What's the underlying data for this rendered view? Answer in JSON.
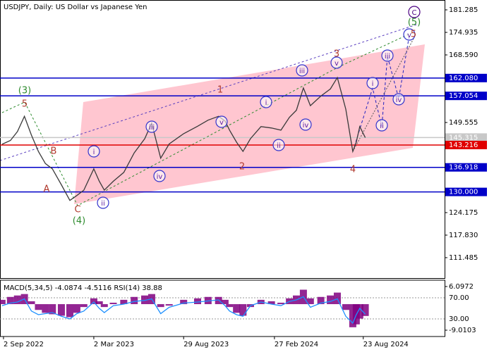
{
  "chart_data": [
    {
      "type": "line",
      "title": "USDJPY, Daily:  US Dollar vs Japanese Yen",
      "x": [
        "2022-08-30",
        "2022-09-16",
        "2022-09-30",
        "2022-10-14",
        "2022-10-28",
        "2022-11-11",
        "2022-11-25",
        "2022-12-09",
        "2022-12-27",
        "2023-01-13",
        "2023-01-27",
        "2023-02-10",
        "2023-03-02",
        "2023-03-13",
        "2023-03-23",
        "2023-04-10",
        "2023-05-01",
        "2023-05-22",
        "2023-06-12",
        "2023-06-26",
        "2023-07-14",
        "2023-07-31",
        "2023-08-29",
        "2023-09-26",
        "2023-10-17",
        "2023-11-07",
        "2023-11-20",
        "2023-11-29",
        "2023-12-13",
        "2023-12-26",
        "2024-01-10",
        "2024-01-31",
        "2024-02-21",
        "2024-03-11",
        "2024-03-28",
        "2024-04-11",
        "2024-04-25",
        "2024-05-09",
        "2024-05-30",
        "2024-06-18",
        "2024-07-02",
        "2024-07-19",
        "2024-08-02",
        "2024-08-09",
        "2024-08-16",
        "2024-08-27"
      ],
      "values": [
        143.4,
        144.5,
        147,
        151.3,
        146,
        141.4,
        138,
        136.5,
        132,
        127.6,
        129,
        130.5,
        136.5,
        133,
        130.5,
        133,
        135.5,
        141,
        145,
        149.4,
        139.5,
        143.5,
        146.4,
        148.5,
        150.2,
        151.3,
        150,
        147.4,
        144,
        141.4,
        145,
        148.4,
        148,
        147.4,
        151,
        153,
        159.3,
        154.3,
        157,
        159,
        162.2,
        153.3,
        141.4,
        144,
        148.4,
        145.315
      ],
      "color": "#3a3a3a",
      "xlim": [
        "2022-08-26",
        "2025-02-02"
      ],
      "xticks": [
        {
          "value": "2022-09-02",
          "label": "2 Sep 2022"
        },
        {
          "value": "2023-03-02",
          "label": "2 Mar 2023"
        },
        {
          "value": "2023-08-29",
          "label": "29 Aug 2023"
        },
        {
          "value": "2024-02-27",
          "label": "27 Feb 2024"
        },
        {
          "value": "2024-08-23",
          "label": "23 Aug 2024"
        }
      ],
      "ylim": [
        105.73,
        184.06
      ],
      "yticks": [
        111.485,
        {
          "value": 117.83,
          "label": "117.830"
        },
        124.175,
        149.555,
        {
          "value": 168.59,
          "label": "168.590"
        },
        174.935,
        181.285
      ],
      "levels": [
        {
          "value": 162.08,
          "label": "162.080",
          "color": "#0000c8"
        },
        {
          "value": 157.054,
          "label": "157.054",
          "color": "#0000c8"
        },
        {
          "value": 145.315,
          "label": "145.315",
          "color": "#c8c8c8"
        },
        {
          "value": 143.216,
          "label": "143.216",
          "color": "#e00000"
        },
        {
          "value": 136.918,
          "label": "136.918",
          "color": "#0000c8"
        },
        {
          "value": 130,
          "label": "130.000",
          "color": "#0000c8"
        }
      ],
      "wave_labels": [
        {
          "text": "(3)",
          "color": "#2e8b2e",
          "circled": false
        },
        {
          "text": "5",
          "color": "#b03a2e",
          "circled": false
        },
        {
          "text": "A",
          "color": "#b03a2e",
          "circled": false
        },
        {
          "text": "B",
          "color": "#b03a2e",
          "circled": false
        },
        {
          "text": "C",
          "color": "#b03a2e",
          "circled": false
        },
        {
          "text": "(4)",
          "color": "#2e8b2e",
          "circled": false
        },
        {
          "text": "i",
          "color": "#5a1aa0",
          "circled": true
        },
        {
          "text": "ii",
          "color": "#5a1aa0",
          "circled": true
        },
        {
          "text": "iii",
          "color": "#5a1aa0",
          "circled": true
        },
        {
          "text": "iv",
          "color": "#5a1aa0",
          "circled": true
        },
        {
          "text": "1",
          "color": "#b03a2e",
          "circled": false
        },
        {
          "text": "v",
          "color": "#5a1aa0",
          "circled": true
        },
        {
          "text": "2",
          "color": "#b03a2e",
          "circled": false
        },
        {
          "text": "i",
          "color": "#5a1aa0",
          "circled": true
        },
        {
          "text": "ii",
          "color": "#5a1aa0",
          "circled": true
        },
        {
          "text": "iii",
          "color": "#5a1aa0",
          "circled": true
        },
        {
          "text": "iv",
          "color": "#5a1aa0",
          "circled": true
        },
        {
          "text": "3",
          "color": "#b03a2e",
          "circled": false
        },
        {
          "text": "v",
          "color": "#5a1aa0",
          "circled": true
        },
        {
          "text": "4",
          "color": "#b03a2e",
          "circled": false
        },
        {
          "text": "i",
          "color": "#5a1aa0",
          "circled": true
        },
        {
          "text": "ii",
          "color": "#5a1aa0",
          "circled": true
        },
        {
          "text": "iii",
          "color": "#5a1aa0",
          "circled": true
        },
        {
          "text": "iv",
          "color": "#5a1aa0",
          "circled": true
        },
        {
          "text": "v",
          "color": "#5a1aa0",
          "circled": true
        },
        {
          "text": "5",
          "color": "#b03a2e",
          "circled": false
        },
        {
          "text": "(5)",
          "color": "#2e8b2e",
          "circled": false
        },
        {
          "text": "C",
          "color": "#4b0082",
          "circled": true
        }
      ]
    },
    {
      "type": "bar",
      "title": "MACD(5,34,5) -4.0874 -4.5116 RSI(14) 38.88",
      "x": [
        "2022-08-30",
        "2022-09-16",
        "2022-09-30",
        "2022-10-14",
        "2022-10-28",
        "2022-11-11",
        "2022-11-25",
        "2022-12-09",
        "2022-12-27",
        "2023-01-13",
        "2023-01-27",
        "2023-02-10",
        "2023-03-02",
        "2023-03-13",
        "2023-03-23",
        "2023-04-10",
        "2023-05-01",
        "2023-05-22",
        "2023-06-12",
        "2023-06-26",
        "2023-07-14",
        "2023-07-31",
        "2023-08-29",
        "2023-09-26",
        "2023-10-17",
        "2023-11-07",
        "2023-11-20",
        "2023-11-29",
        "2023-12-13",
        "2023-12-26",
        "2024-01-10",
        "2024-01-31",
        "2024-02-21",
        "2024-03-11",
        "2024-03-28",
        "2024-04-11",
        "2024-04-25",
        "2024-05-09",
        "2024-05-30",
        "2024-06-18",
        "2024-07-02",
        "2024-07-19",
        "2024-08-02",
        "2024-08-09",
        "2024-08-16",
        "2024-08-27"
      ],
      "series": [
        {
          "color": "#800080",
          "values": [
            1.5,
            2.5,
            3,
            3.5,
            1,
            -2,
            -3,
            -3.5,
            -4,
            -4.5,
            -3,
            -1,
            2,
            1,
            -1,
            0.5,
            1.5,
            2.5,
            3,
            3.5,
            -1,
            -0.5,
            1.5,
            2,
            2.5,
            2.5,
            1.5,
            -1,
            -3,
            -4,
            -1,
            1.5,
            1,
            0.5,
            2,
            3,
            5,
            2,
            2.5,
            3,
            4,
            -2,
            -8,
            -7,
            -5,
            -4.0874
          ]
        },
        {
          "color": "#1e90ff",
          "axis": "y2",
          "values": [
            55,
            60,
            62,
            68,
            45,
            38,
            40,
            42,
            35,
            30,
            40,
            45,
            62,
            50,
            42,
            55,
            58,
            63,
            65,
            68,
            40,
            52,
            60,
            62,
            64,
            66,
            55,
            45,
            38,
            35,
            55,
            62,
            58,
            55,
            63,
            66,
            72,
            52,
            60,
            63,
            68,
            35,
            22,
            38,
            50,
            38.88
          ]
        }
      ],
      "ylim": [
        -11.2,
        8.29
      ],
      "yticks": [
        6.0972,
        -9.0103
      ],
      "y2lim": [
        -3.3,
        103.3
      ],
      "y2ticks": [
        {
          "value": 70,
          "label": "70.00"
        },
        {
          "value": 30,
          "label": "30.00"
        }
      ]
    }
  ]
}
